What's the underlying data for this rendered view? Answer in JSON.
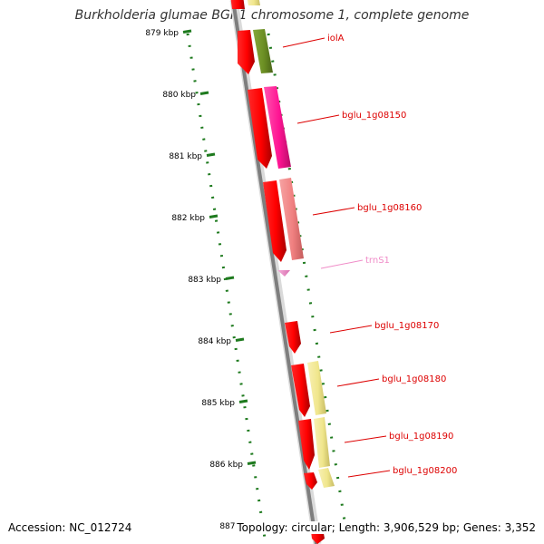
{
  "title": "Burkholderia glumae BGR1 chromosome 1, complete genome",
  "accession": "Accession: NC_012724",
  "summary": "Topology: circular; Length: 3,906,529 bp; Genes: 3,352",
  "ticks": [
    {
      "label": "879 kbp"
    },
    {
      "label": "880 kbp"
    },
    {
      "label": "881 kbp"
    },
    {
      "label": "882 kbp"
    },
    {
      "label": "883 kbp"
    },
    {
      "label": "884 kbp"
    },
    {
      "label": "885 kbp"
    },
    {
      "label": "886 kbp"
    },
    {
      "label": "887 kbp"
    }
  ],
  "gene_labels": [
    {
      "text": "iolA",
      "color": "#dd0000"
    },
    {
      "text": "bglu_1g08150",
      "color": "#dd0000"
    },
    {
      "text": "bglu_1g08160",
      "color": "#dd0000"
    },
    {
      "text": "trnS1",
      "color": "#f08cc8"
    },
    {
      "text": "bglu_1g08170",
      "color": "#dd0000"
    },
    {
      "text": "bglu_1g08180",
      "color": "#dd0000"
    },
    {
      "text": "bglu_1g08190",
      "color": "#dd0000"
    },
    {
      "text": "bglu_1g08200",
      "color": "#dd0000"
    }
  ],
  "colors": {
    "backbone": "#8c8c8c",
    "tick": "#1e7a1e",
    "cds": "#ff0000",
    "trna": "#f08cc8",
    "cog_olive": "#6b8e23",
    "cog_magenta": "#ff1493",
    "cog_salmon": "#f08080",
    "cog_yellow": "#f0e68c"
  }
}
